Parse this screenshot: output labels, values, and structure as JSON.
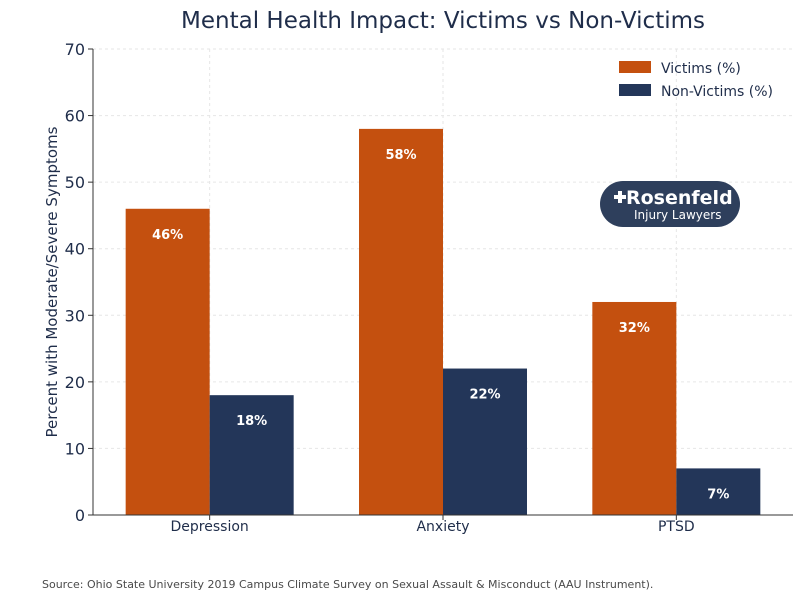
{
  "chart_data": {
    "type": "bar",
    "title": "Mental Health Impact: Victims vs Non-Victims",
    "xlabel": "",
    "ylabel": "Percent with Moderate/Severe Symptoms",
    "categories": [
      "Depression",
      "Anxiety",
      "PTSD"
    ],
    "series": [
      {
        "name": "Victims (%)",
        "color": "#c4500f",
        "values": [
          46,
          58,
          32
        ],
        "labels": [
          "46%",
          "58%",
          "32%"
        ]
      },
      {
        "name": "Non-Victims (%)",
        "color": "#233659",
        "values": [
          18,
          22,
          7
        ],
        "labels": [
          "18%",
          "22%",
          "7%"
        ]
      }
    ],
    "ylim": [
      0,
      70
    ],
    "yticks": [
      0,
      10,
      20,
      30,
      40,
      50,
      60,
      70
    ],
    "grid": true,
    "legend_position": "top-right"
  },
  "logo": {
    "main": "Rosenfeld",
    "sub": "Injury Lawyers",
    "background_color": "#2e3f5c"
  },
  "source_note": "Source: Ohio State University 2019 Campus Climate Survey on Sexual Assault & Misconduct (AAU Instrument)."
}
